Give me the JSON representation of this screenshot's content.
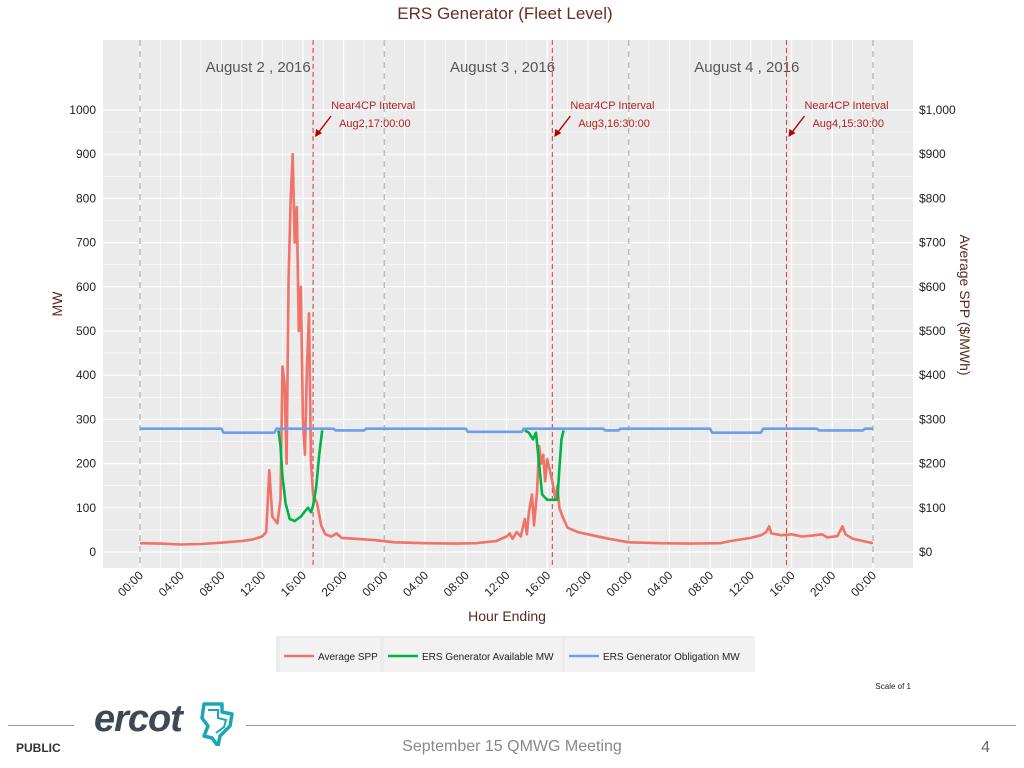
{
  "chart_data": {
    "type": "line",
    "title": "ERS Generator (Fleet Level)",
    "xlabel": "Hour Ending",
    "ylabel_left": "MW",
    "ylabel_right": "Average SPP ($/MWh)",
    "ylim_left": [
      0,
      1000
    ],
    "ylim_right": [
      0,
      1000
    ],
    "yticks_left": [
      "0",
      "100",
      "200",
      "300",
      "400",
      "500",
      "600",
      "700",
      "800",
      "900",
      "1000"
    ],
    "yticks_right": [
      "$0",
      "$100",
      "$200",
      "$300",
      "$400",
      "$500",
      "$600",
      "$700",
      "$800",
      "$900",
      "$1,000"
    ],
    "xticks": [
      "00:00",
      "04:00",
      "08:00",
      "12:00",
      "16:00",
      "20:00",
      "00:00",
      "04:00",
      "08:00",
      "12:00",
      "16:00",
      "20:00",
      "00:00",
      "04:00",
      "08:00",
      "12:00",
      "16:00",
      "20:00",
      "00:00"
    ],
    "x_range_hours": [
      0,
      72
    ],
    "day_labels": [
      "August 2 , 2016",
      "August 3 , 2016",
      "August 4 , 2016"
    ],
    "annotations": [
      {
        "line1": "Near4CP Interval",
        "line2": "Aug2,17:00:00",
        "hour": 17
      },
      {
        "line1": "Near4CP Interval",
        "line2": "Aug3,16:30:00",
        "hour": 40.5
      },
      {
        "line1": "Near4CP Interval",
        "line2": "Aug4,15:30:00",
        "hour": 63.5
      }
    ],
    "grid": true,
    "legend_position": "bottom",
    "series": [
      {
        "name": "Average SPP",
        "color": "#f07268",
        "points": [
          [
            0,
            20
          ],
          [
            2,
            19
          ],
          [
            4,
            17
          ],
          [
            6,
            18
          ],
          [
            8,
            21
          ],
          [
            10,
            25
          ],
          [
            11,
            28
          ],
          [
            12,
            35
          ],
          [
            12.4,
            45
          ],
          [
            12.7,
            185
          ],
          [
            13,
            80
          ],
          [
            13.5,
            65
          ],
          [
            13.8,
            120
          ],
          [
            14,
            420
          ],
          [
            14.2,
            380
          ],
          [
            14.4,
            200
          ],
          [
            14.6,
            620
          ],
          [
            14.8,
            800
          ],
          [
            15,
            900
          ],
          [
            15.2,
            700
          ],
          [
            15.4,
            780
          ],
          [
            15.6,
            500
          ],
          [
            15.8,
            600
          ],
          [
            16,
            300
          ],
          [
            16.2,
            220
          ],
          [
            16.4,
            420
          ],
          [
            16.6,
            540
          ],
          [
            16.8,
            200
          ],
          [
            17,
            130
          ],
          [
            17.4,
            110
          ],
          [
            17.8,
            60
          ],
          [
            18.2,
            40
          ],
          [
            18.8,
            35
          ],
          [
            19.3,
            42
          ],
          [
            19.8,
            32
          ],
          [
            21,
            30
          ],
          [
            23,
            27
          ],
          [
            25,
            22
          ],
          [
            28,
            20
          ],
          [
            31,
            19
          ],
          [
            33,
            20
          ],
          [
            35,
            25
          ],
          [
            36,
            35
          ],
          [
            36.3,
            42
          ],
          [
            36.6,
            30
          ],
          [
            37,
            45
          ],
          [
            37.4,
            35
          ],
          [
            37.8,
            75
          ],
          [
            38,
            40
          ],
          [
            38.2,
            90
          ],
          [
            38.5,
            130
          ],
          [
            38.7,
            60
          ],
          [
            39,
            135
          ],
          [
            39.2,
            240
          ],
          [
            39.4,
            200
          ],
          [
            39.6,
            220
          ],
          [
            39.8,
            160
          ],
          [
            40,
            210
          ],
          [
            40.2,
            190
          ],
          [
            40.5,
            160
          ],
          [
            40.8,
            120
          ],
          [
            41,
            150
          ],
          [
            41.2,
            100
          ],
          [
            41.5,
            80
          ],
          [
            42,
            55
          ],
          [
            43,
            45
          ],
          [
            44,
            40
          ],
          [
            46,
            30
          ],
          [
            48,
            22
          ],
          [
            51,
            20
          ],
          [
            54,
            19
          ],
          [
            57,
            20
          ],
          [
            58,
            25
          ],
          [
            60,
            32
          ],
          [
            61,
            38
          ],
          [
            61.5,
            45
          ],
          [
            61.8,
            58
          ],
          [
            62,
            42
          ],
          [
            63,
            38
          ],
          [
            64,
            40
          ],
          [
            65,
            35
          ],
          [
            66,
            37
          ],
          [
            67,
            40
          ],
          [
            67.5,
            33
          ],
          [
            68.5,
            36
          ],
          [
            69,
            58
          ],
          [
            69.3,
            40
          ],
          [
            70,
            30
          ],
          [
            71,
            25
          ],
          [
            72,
            20
          ]
        ]
      },
      {
        "name": "ERS Generator Available MW",
        "color": "#00b347",
        "points": [
          [
            13.6,
            275
          ],
          [
            13.8,
            240
          ],
          [
            14,
            170
          ],
          [
            14.3,
            110
          ],
          [
            14.7,
            75
          ],
          [
            15.2,
            70
          ],
          [
            15.8,
            80
          ],
          [
            16.2,
            92
          ],
          [
            16.5,
            100
          ],
          [
            16.8,
            90
          ],
          [
            17,
            105
          ],
          [
            17.3,
            145
          ],
          [
            17.6,
            220
          ],
          [
            17.9,
            275
          ],
          null,
          [
            37.8,
            275
          ],
          [
            38.2,
            270
          ],
          [
            38.6,
            255
          ],
          [
            38.9,
            270
          ],
          [
            39.2,
            200
          ],
          [
            39.5,
            130
          ],
          [
            40,
            118
          ],
          [
            40.5,
            118
          ],
          [
            41,
            118
          ],
          [
            41.2,
            190
          ],
          [
            41.4,
            255
          ],
          [
            41.6,
            275
          ]
        ]
      },
      {
        "name": "ERS Generator Obligation MW",
        "color": "#6d9eeb",
        "points": [
          [
            0,
            279
          ],
          [
            8,
            279
          ],
          [
            8.2,
            270
          ],
          [
            13.2,
            270
          ],
          [
            13.4,
            279
          ],
          [
            19,
            279
          ],
          [
            19.2,
            275
          ],
          [
            22,
            275
          ],
          [
            22.2,
            279
          ],
          [
            32,
            279
          ],
          [
            32.2,
            272
          ],
          [
            37.5,
            272
          ],
          [
            37.7,
            279
          ],
          [
            45.5,
            279
          ],
          [
            45.7,
            275
          ],
          [
            47,
            275
          ],
          [
            47.2,
            279
          ],
          [
            56,
            279
          ],
          [
            56.2,
            270
          ],
          [
            61,
            270
          ],
          [
            61.2,
            279
          ],
          [
            66.5,
            279
          ],
          [
            66.7,
            275
          ],
          [
            71,
            275
          ],
          [
            71.2,
            279
          ],
          [
            72,
            279
          ]
        ]
      }
    ]
  },
  "footer": {
    "scale_note": "Scale of 1",
    "meeting": "September 15 QMWG Meeting",
    "public_label": "PUBLIC",
    "page_number": "4",
    "logo_text": "ercot"
  }
}
